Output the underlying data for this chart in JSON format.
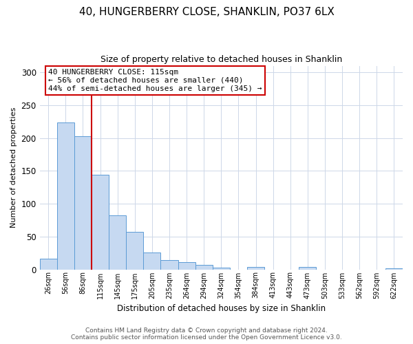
{
  "title": "40, HUNGERBERRY CLOSE, SHANKLIN, PO37 6LX",
  "subtitle": "Size of property relative to detached houses in Shanklin",
  "xlabel": "Distribution of detached houses by size in Shanklin",
  "ylabel": "Number of detached properties",
  "bar_labels": [
    "26sqm",
    "56sqm",
    "86sqm",
    "115sqm",
    "145sqm",
    "175sqm",
    "205sqm",
    "235sqm",
    "264sqm",
    "294sqm",
    "324sqm",
    "354sqm",
    "384sqm",
    "413sqm",
    "443sqm",
    "473sqm",
    "503sqm",
    "533sqm",
    "562sqm",
    "592sqm",
    "622sqm"
  ],
  "bar_values": [
    16,
    224,
    203,
    144,
    82,
    57,
    26,
    14,
    11,
    7,
    3,
    0,
    4,
    0,
    0,
    4,
    0,
    0,
    0,
    0,
    2
  ],
  "bar_color": "#c6d9f1",
  "bar_edge_color": "#5b9bd5",
  "vline_x_idx": 3,
  "vline_color": "#cc0000",
  "annotation_title": "40 HUNGERBERRY CLOSE: 115sqm",
  "annotation_line1": "← 56% of detached houses are smaller (440)",
  "annotation_line2": "44% of semi-detached houses are larger (345) →",
  "annotation_box_color": "#ffffff",
  "annotation_box_edge": "#cc0000",
  "footer_line1": "Contains HM Land Registry data © Crown copyright and database right 2024.",
  "footer_line2": "Contains public sector information licensed under the Open Government Licence v3.0.",
  "ylim": [
    0,
    310
  ],
  "yticks": [
    0,
    50,
    100,
    150,
    200,
    250,
    300
  ],
  "background_color": "#ffffff",
  "grid_color": "#cdd7e8"
}
